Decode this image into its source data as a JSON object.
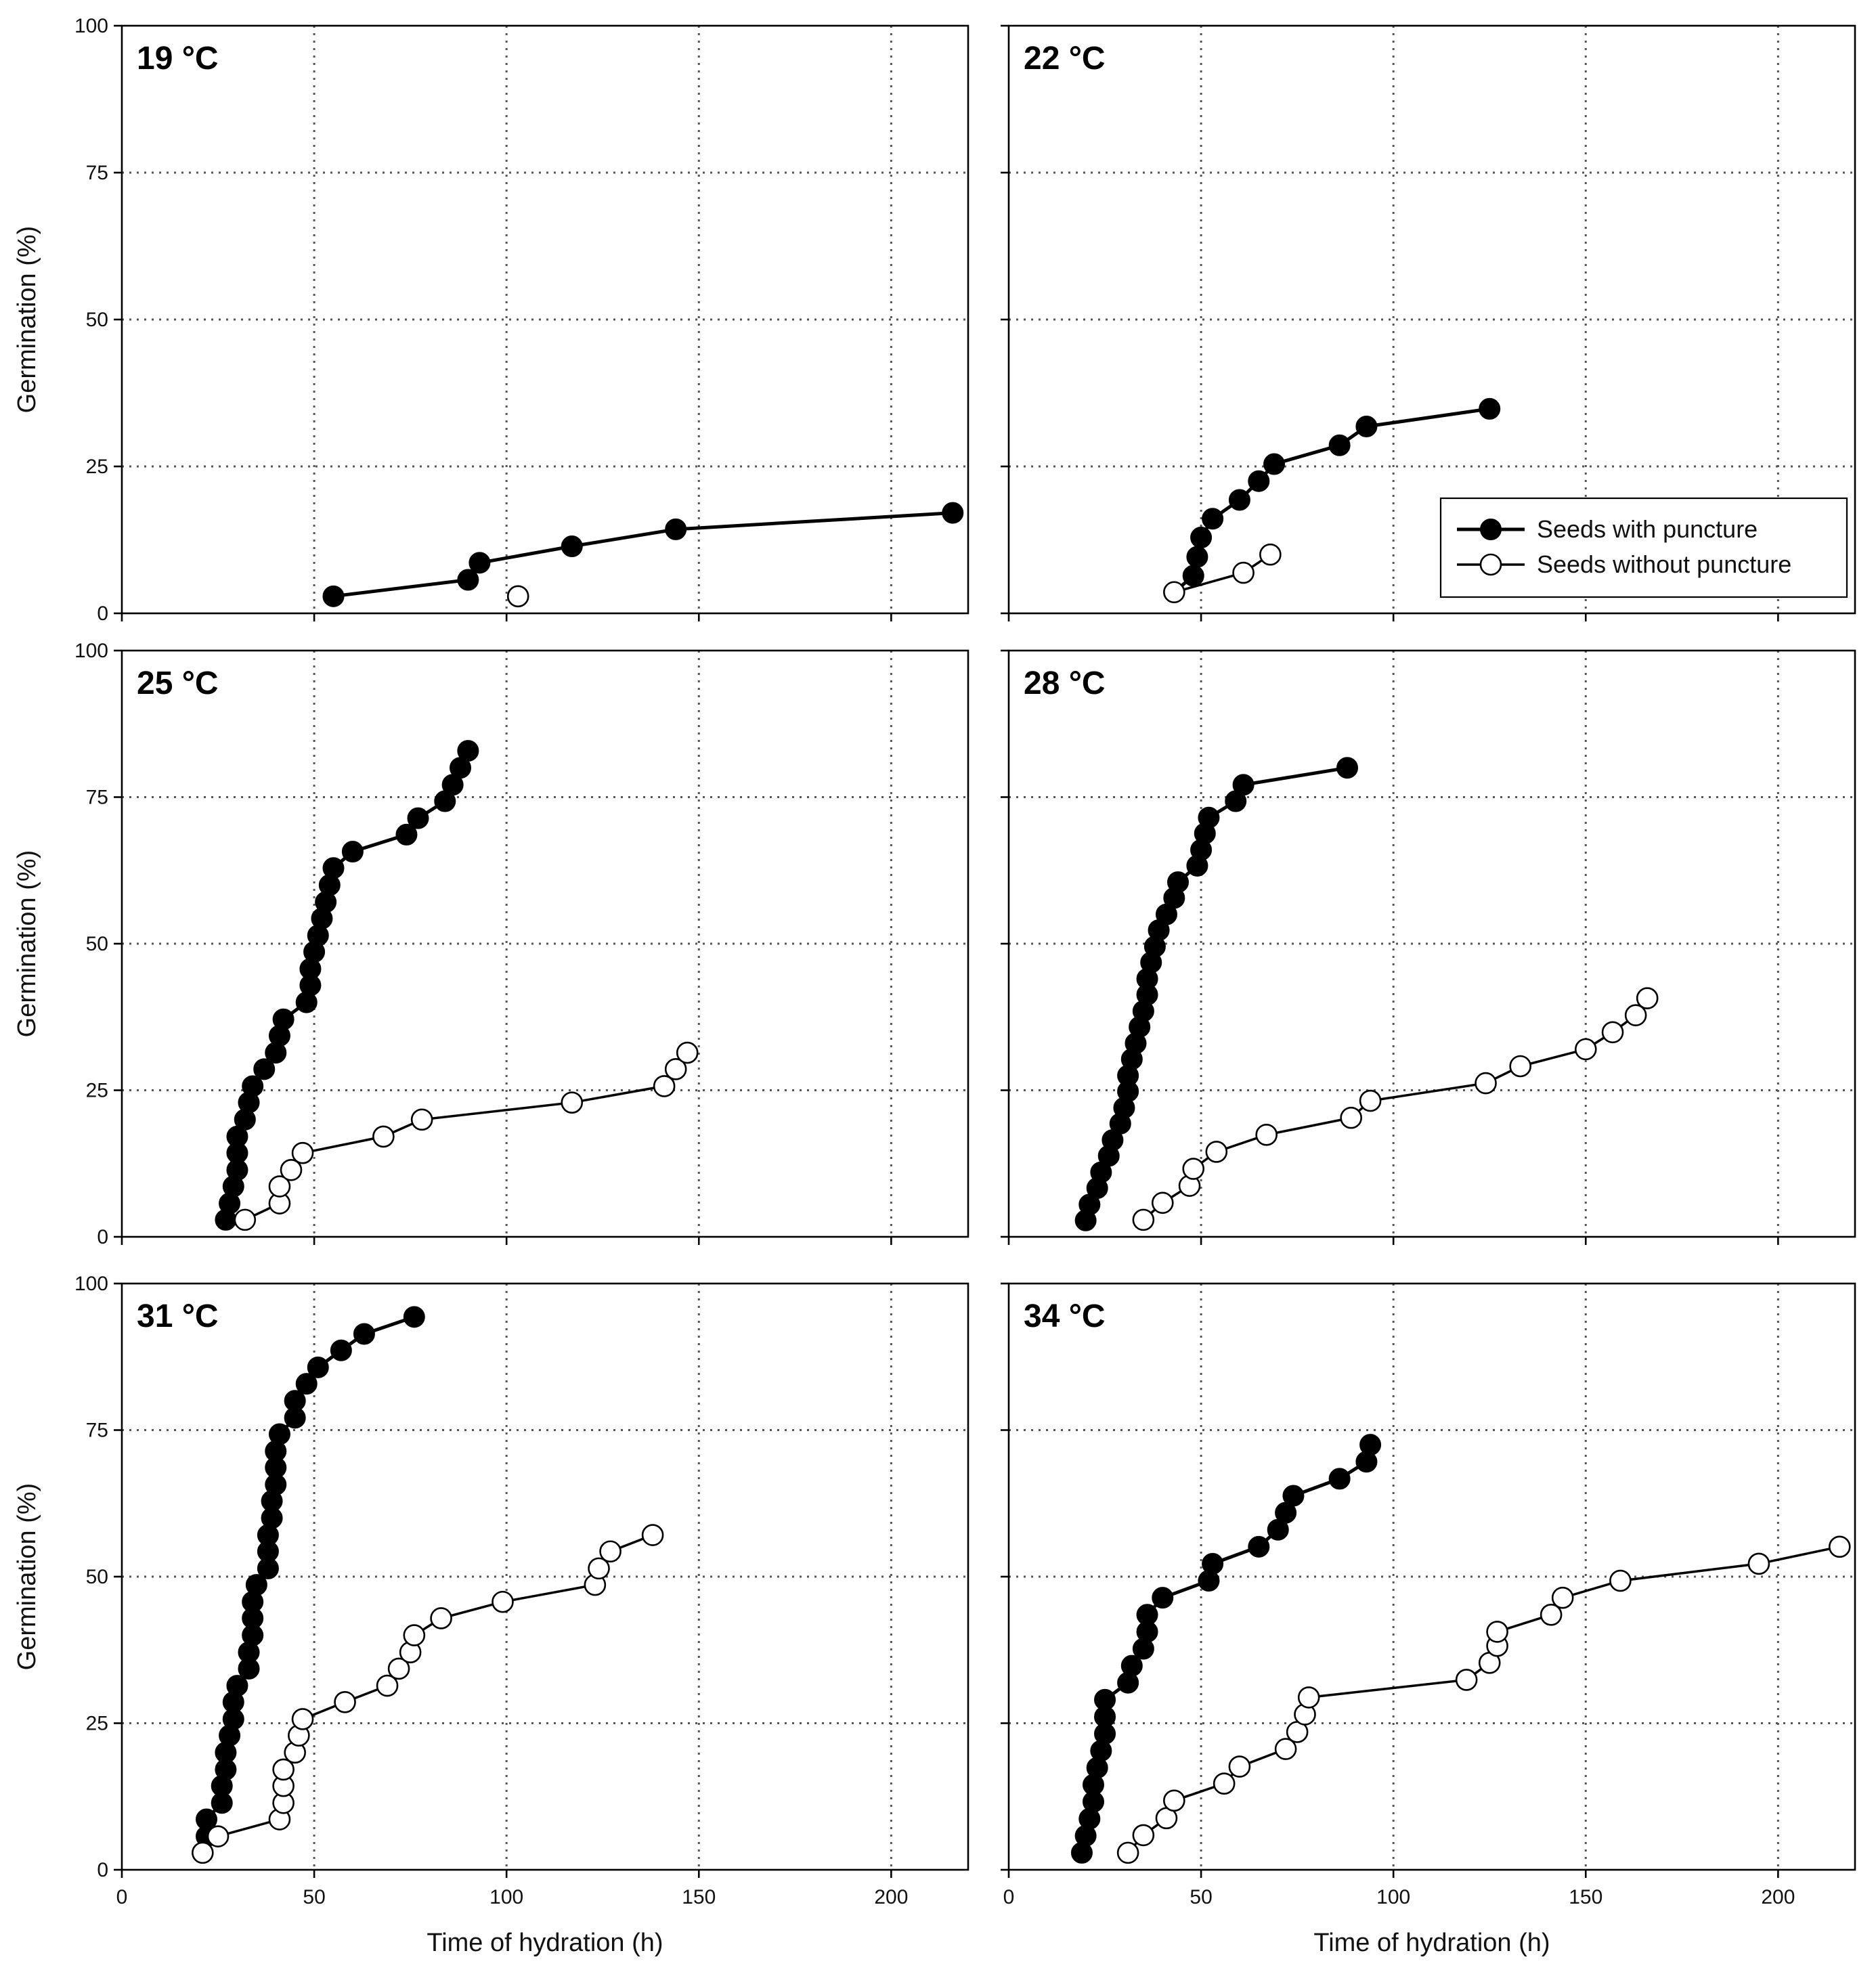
{
  "chart_data": [
    {
      "type": "line",
      "panel_label": "19 °C",
      "ylabel": "Germination (%)",
      "xlabel": "",
      "xlim": [
        0,
        220
      ],
      "ylim": [
        0,
        100
      ],
      "xticks": [
        "0",
        "50",
        "100",
        "150",
        "200"
      ],
      "yticks": [
        "0",
        "25",
        "50",
        "75",
        "100"
      ],
      "show_xtick_labels": false,
      "show_ytick_labels": true,
      "grid": true,
      "series": [
        {
          "name": "Seeds with puncture",
          "marker": "filled",
          "points": [
            [
              55,
              2.9
            ],
            [
              90,
              5.7
            ],
            [
              93,
              8.6
            ],
            [
              117,
              11.4
            ],
            [
              144,
              14.3
            ],
            [
              216,
              17.1
            ]
          ]
        },
        {
          "name": "Seeds without puncture",
          "marker": "open",
          "points": [
            [
              103,
              2.9
            ]
          ]
        }
      ]
    },
    {
      "type": "line",
      "panel_label": "22 °C",
      "ylabel": "",
      "xlabel": "",
      "xlim": [
        0,
        220
      ],
      "ylim": [
        0,
        100
      ],
      "xticks": [
        "0",
        "50",
        "100",
        "150",
        "200"
      ],
      "yticks": [
        "0",
        "25",
        "50",
        "75",
        "100"
      ],
      "show_xtick_labels": false,
      "show_ytick_labels": false,
      "grid": true,
      "legend": {
        "position": "bottom-right",
        "entries": [
          "Seeds with puncture",
          "Seeds without puncture"
        ]
      },
      "series": [
        {
          "name": "Seeds with puncture",
          "marker": "filled",
          "points": [
            [
              43,
              3.6
            ],
            [
              48,
              6.4
            ],
            [
              49,
              9.6
            ],
            [
              50,
              12.9
            ],
            [
              53,
              16.1
            ],
            [
              60,
              19.3
            ],
            [
              65,
              22.5
            ],
            [
              69,
              25.4
            ],
            [
              86,
              28.6
            ],
            [
              93,
              31.8
            ],
            [
              125,
              34.8
            ]
          ]
        },
        {
          "name": "Seeds without puncture",
          "marker": "open",
          "points": [
            [
              43,
              3.6
            ],
            [
              61,
              6.9
            ],
            [
              68,
              10.0
            ]
          ]
        }
      ]
    },
    {
      "type": "line",
      "panel_label": "25 °C",
      "ylabel": "Germination (%)",
      "xlabel": "",
      "xlim": [
        0,
        220
      ],
      "ylim": [
        0,
        100
      ],
      "xticks": [
        "0",
        "50",
        "100",
        "150",
        "200"
      ],
      "yticks": [
        "0",
        "25",
        "50",
        "75",
        "100"
      ],
      "show_xtick_labels": false,
      "show_ytick_labels": true,
      "grid": true,
      "series": [
        {
          "name": "Seeds with puncture",
          "marker": "filled",
          "points": [
            [
              27,
              2.9
            ],
            [
              28,
              5.7
            ],
            [
              29,
              8.6
            ],
            [
              30,
              11.4
            ],
            [
              30,
              14.3
            ],
            [
              30,
              17.1
            ],
            [
              32,
              20.0
            ],
            [
              33,
              22.9
            ],
            [
              34,
              25.7
            ],
            [
              37,
              28.6
            ],
            [
              40,
              31.4
            ],
            [
              41,
              34.3
            ],
            [
              42,
              37.1
            ],
            [
              48,
              40.0
            ],
            [
              49,
              42.9
            ],
            [
              49,
              45.7
            ],
            [
              50,
              48.6
            ],
            [
              51,
              51.4
            ],
            [
              52,
              54.3
            ],
            [
              53,
              57.1
            ],
            [
              54,
              60.0
            ],
            [
              55,
              62.9
            ],
            [
              60,
              65.7
            ],
            [
              74,
              68.6
            ],
            [
              77,
              71.4
            ],
            [
              84,
              74.3
            ],
            [
              86,
              77.1
            ],
            [
              88,
              80.0
            ],
            [
              90,
              82.9
            ]
          ]
        },
        {
          "name": "Seeds without puncture",
          "marker": "open",
          "points": [
            [
              32,
              2.9
            ],
            [
              41,
              5.7
            ],
            [
              41,
              8.6
            ],
            [
              44,
              11.4
            ],
            [
              47,
              14.3
            ],
            [
              68,
              17.1
            ],
            [
              78,
              20.0
            ],
            [
              117,
              22.9
            ],
            [
              141,
              25.7
            ],
            [
              144,
              28.6
            ],
            [
              147,
              31.4
            ]
          ]
        }
      ]
    },
    {
      "type": "line",
      "panel_label": "28 °C",
      "ylabel": "",
      "xlabel": "",
      "xlim": [
        0,
        220
      ],
      "ylim": [
        0,
        100
      ],
      "xticks": [
        "0",
        "50",
        "100",
        "150",
        "200"
      ],
      "yticks": [
        "0",
        "25",
        "50",
        "75",
        "100"
      ],
      "show_xtick_labels": false,
      "show_ytick_labels": false,
      "grid": true,
      "series": [
        {
          "name": "Seeds with puncture",
          "marker": "filled",
          "points": [
            [
              20,
              2.8
            ],
            [
              21,
              5.5
            ],
            [
              23,
              8.3
            ],
            [
              24,
              11.0
            ],
            [
              26,
              13.8
            ],
            [
              27,
              16.5
            ],
            [
              29,
              19.3
            ],
            [
              30,
              22.0
            ],
            [
              31,
              24.8
            ],
            [
              31,
              27.5
            ],
            [
              32,
              30.3
            ],
            [
              33,
              33.0
            ],
            [
              34,
              35.8
            ],
            [
              35,
              38.5
            ],
            [
              36,
              41.3
            ],
            [
              36,
              44.0
            ],
            [
              37,
              46.8
            ],
            [
              38,
              49.5
            ],
            [
              39,
              52.3
            ],
            [
              41,
              55.0
            ],
            [
              43,
              57.8
            ],
            [
              44,
              60.5
            ],
            [
              49,
              63.3
            ],
            [
              50,
              66.0
            ],
            [
              51,
              68.8
            ],
            [
              52,
              71.5
            ],
            [
              59,
              74.3
            ],
            [
              61,
              77.1
            ],
            [
              88,
              80.0
            ]
          ]
        },
        {
          "name": "Seeds without puncture",
          "marker": "open",
          "points": [
            [
              35,
              2.9
            ],
            [
              40,
              5.8
            ],
            [
              47,
              8.7
            ],
            [
              48,
              11.6
            ],
            [
              54,
              14.5
            ],
            [
              67,
              17.4
            ],
            [
              89,
              20.3
            ],
            [
              94,
              23.2
            ],
            [
              124,
              26.2
            ],
            [
              133,
              29.1
            ],
            [
              150,
              32.0
            ],
            [
              157,
              34.9
            ],
            [
              163,
              37.8
            ],
            [
              166,
              40.7
            ]
          ]
        }
      ]
    },
    {
      "type": "line",
      "panel_label": "31 °C",
      "ylabel": "Germination (%)",
      "xlabel": "Time of hydration (h)",
      "xlim": [
        0,
        220
      ],
      "ylim": [
        0,
        100
      ],
      "xticks": [
        "0",
        "50",
        "100",
        "150",
        "200"
      ],
      "yticks": [
        "0",
        "25",
        "50",
        "75",
        "100"
      ],
      "show_xtick_labels": true,
      "show_ytick_labels": true,
      "grid": true,
      "series": [
        {
          "name": "Seeds with puncture",
          "marker": "filled",
          "points": [
            [
              21,
              2.9
            ],
            [
              22,
              5.7
            ],
            [
              22,
              8.6
            ],
            [
              26,
              11.4
            ],
            [
              26,
              14.3
            ],
            [
              27,
              17.1
            ],
            [
              27,
              20.0
            ],
            [
              28,
              22.9
            ],
            [
              29,
              25.7
            ],
            [
              29,
              28.6
            ],
            [
              30,
              31.4
            ],
            [
              33,
              34.3
            ],
            [
              33,
              37.1
            ],
            [
              34,
              40.0
            ],
            [
              34,
              42.9
            ],
            [
              34,
              45.7
            ],
            [
              35,
              48.6
            ],
            [
              38,
              51.4
            ],
            [
              38,
              54.3
            ],
            [
              38,
              57.1
            ],
            [
              39,
              60.0
            ],
            [
              39,
              62.9
            ],
            [
              40,
              65.7
            ],
            [
              40,
              68.6
            ],
            [
              40,
              71.4
            ],
            [
              41,
              74.3
            ],
            [
              45,
              77.1
            ],
            [
              45,
              80.0
            ],
            [
              48,
              82.9
            ],
            [
              51,
              85.7
            ],
            [
              57,
              88.6
            ],
            [
              63,
              91.4
            ],
            [
              76,
              94.3
            ]
          ]
        },
        {
          "name": "Seeds without puncture",
          "marker": "open",
          "points": [
            [
              21,
              2.9
            ],
            [
              25,
              5.7
            ],
            [
              41,
              8.6
            ],
            [
              42,
              11.4
            ],
            [
              42,
              14.3
            ],
            [
              42,
              17.1
            ],
            [
              45,
              20.0
            ],
            [
              46,
              22.9
            ],
            [
              47,
              25.7
            ],
            [
              58,
              28.6
            ],
            [
              69,
              31.4
            ],
            [
              72,
              34.3
            ],
            [
              75,
              37.1
            ],
            [
              76,
              40.0
            ],
            [
              83,
              42.9
            ],
            [
              99,
              45.7
            ],
            [
              123,
              48.6
            ],
            [
              124,
              51.4
            ],
            [
              127,
              54.3
            ],
            [
              138,
              57.1
            ]
          ]
        }
      ]
    },
    {
      "type": "line",
      "panel_label": "34 °C",
      "ylabel": "",
      "xlabel": "Time of hydration (h)",
      "xlim": [
        0,
        220
      ],
      "ylim": [
        0,
        100
      ],
      "xticks": [
        "0",
        "50",
        "100",
        "150",
        "200"
      ],
      "yticks": [
        "0",
        "25",
        "50",
        "75",
        "100"
      ],
      "show_xtick_labels": true,
      "show_ytick_labels": false,
      "grid": true,
      "series": [
        {
          "name": "Seeds with puncture",
          "marker": "filled",
          "points": [
            [
              19,
              2.9
            ],
            [
              20,
              5.8
            ],
            [
              21,
              8.7
            ],
            [
              22,
              11.6
            ],
            [
              22,
              14.5
            ],
            [
              23,
              17.4
            ],
            [
              24,
              20.3
            ],
            [
              25,
              23.2
            ],
            [
              25,
              26.1
            ],
            [
              25,
              29.0
            ],
            [
              31,
              31.9
            ],
            [
              32,
              34.8
            ],
            [
              35,
              37.7
            ],
            [
              36,
              40.6
            ],
            [
              36,
              43.5
            ],
            [
              40,
              46.4
            ],
            [
              52,
              49.3
            ],
            [
              53,
              52.2
            ],
            [
              65,
              55.1
            ],
            [
              70,
              58.0
            ],
            [
              72,
              60.9
            ],
            [
              74,
              63.8
            ],
            [
              86,
              66.7
            ],
            [
              93,
              69.6
            ],
            [
              94,
              72.5
            ]
          ]
        },
        {
          "name": "Seeds without puncture",
          "marker": "open",
          "points": [
            [
              31,
              2.9
            ],
            [
              35,
              5.9
            ],
            [
              41,
              8.8
            ],
            [
              43,
              11.8
            ],
            [
              56,
              14.7
            ],
            [
              60,
              17.6
            ],
            [
              72,
              20.6
            ],
            [
              75,
              23.5
            ],
            [
              77,
              26.5
            ],
            [
              78,
              29.4
            ],
            [
              119,
              32.4
            ],
            [
              125,
              35.3
            ],
            [
              127,
              38.2
            ],
            [
              127,
              40.6
            ],
            [
              141,
              43.5
            ],
            [
              144,
              46.4
            ],
            [
              159,
              49.3
            ],
            [
              195,
              52.2
            ],
            [
              216,
              55.1
            ]
          ]
        }
      ]
    }
  ]
}
